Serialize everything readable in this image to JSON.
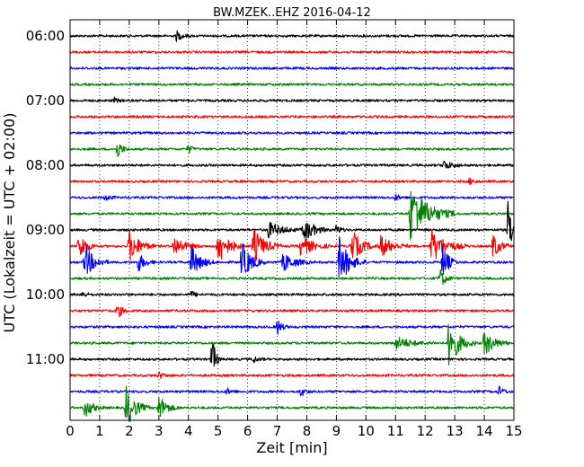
{
  "chart_data": {
    "type": "line",
    "title": "BW.MZEK..EHZ 2016-04-12",
    "xlabel": "Zeit  [min]",
    "ylabel": "UTC (Lokalzeit = UTC + 02:00)",
    "xlim": [
      0,
      15
    ],
    "x_ticks": [
      "0",
      "1",
      "2",
      "3",
      "4",
      "5",
      "6",
      "7",
      "8",
      "9",
      "10",
      "11",
      "12",
      "13",
      "14",
      "15"
    ],
    "y_ticks": [
      "06:00",
      "07:00",
      "08:00",
      "09:00",
      "10:00",
      "11:00"
    ],
    "grid": "dotted",
    "trace_colors": [
      "#000000",
      "#ff0000",
      "#0000ff",
      "#008000"
    ],
    "traces": [
      {
        "start": "06:00",
        "color": "#000000",
        "events": [
          {
            "t": 3.6,
            "amp": 0.3,
            "dur": 0.5
          }
        ]
      },
      {
        "start": "06:15",
        "color": "#ff0000",
        "events": []
      },
      {
        "start": "06:30",
        "color": "#0000ff",
        "events": []
      },
      {
        "start": "06:45",
        "color": "#008000",
        "events": []
      },
      {
        "start": "07:00",
        "color": "#000000",
        "events": [
          {
            "t": 1.5,
            "amp": 0.15,
            "dur": 0.4
          }
        ]
      },
      {
        "start": "07:15",
        "color": "#ff0000",
        "events": []
      },
      {
        "start": "07:30",
        "color": "#0000ff",
        "events": []
      },
      {
        "start": "07:45",
        "color": "#008000",
        "events": [
          {
            "t": 1.6,
            "amp": 0.6,
            "dur": 0.4
          },
          {
            "t": 4.0,
            "amp": 0.3,
            "dur": 0.3
          }
        ]
      },
      {
        "start": "08:00",
        "color": "#000000",
        "events": [
          {
            "t": 12.6,
            "amp": 0.3,
            "dur": 0.8
          }
        ]
      },
      {
        "start": "08:15",
        "color": "#ff0000",
        "events": [
          {
            "t": 13.5,
            "amp": 0.2,
            "dur": 0.4
          }
        ]
      },
      {
        "start": "08:30",
        "color": "#0000ff",
        "events": [
          {
            "t": 1.2,
            "amp": 0.2,
            "dur": 0.4
          },
          {
            "t": 11.0,
            "amp": 0.2,
            "dur": 0.4
          }
        ]
      },
      {
        "start": "08:45",
        "color": "#008000",
        "events": [
          {
            "t": 11.5,
            "amp": 1.8,
            "dur": 1.6
          }
        ]
      },
      {
        "start": "09:00",
        "color": "#000000",
        "events": [
          {
            "t": 6.7,
            "amp": 0.5,
            "dur": 1.2
          },
          {
            "t": 7.9,
            "amp": 0.8,
            "dur": 0.9
          },
          {
            "t": 9.0,
            "amp": 0.3,
            "dur": 0.4
          },
          {
            "t": 14.8,
            "amp": 1.8,
            "dur": 0.5
          }
        ]
      },
      {
        "start": "09:15",
        "color": "#ff0000",
        "events": [
          {
            "t": 0.3,
            "amp": 1.0,
            "dur": 0.6
          },
          {
            "t": 2.0,
            "amp": 1.0,
            "dur": 0.9
          },
          {
            "t": 3.5,
            "amp": 0.6,
            "dur": 1.0
          },
          {
            "t": 5.0,
            "amp": 1.2,
            "dur": 0.9
          },
          {
            "t": 6.2,
            "amp": 1.1,
            "dur": 1.0
          },
          {
            "t": 7.8,
            "amp": 0.7,
            "dur": 1.0
          },
          {
            "t": 9.5,
            "amp": 1.1,
            "dur": 0.9
          },
          {
            "t": 10.5,
            "amp": 0.7,
            "dur": 1.0
          },
          {
            "t": 12.2,
            "amp": 1.1,
            "dur": 1.2
          },
          {
            "t": 14.3,
            "amp": 0.8,
            "dur": 0.6
          }
        ]
      },
      {
        "start": "09:30",
        "color": "#0000ff",
        "events": [
          {
            "t": 0.5,
            "amp": 1.1,
            "dur": 0.8
          },
          {
            "t": 2.3,
            "amp": 0.6,
            "dur": 0.6
          },
          {
            "t": 4.1,
            "amp": 1.0,
            "dur": 0.8
          },
          {
            "t": 5.8,
            "amp": 1.3,
            "dur": 0.8
          },
          {
            "t": 7.2,
            "amp": 0.6,
            "dur": 1.0
          },
          {
            "t": 9.1,
            "amp": 1.5,
            "dur": 0.9
          },
          {
            "t": 12.6,
            "amp": 1.2,
            "dur": 0.5
          }
        ]
      },
      {
        "start": "09:45",
        "color": "#008000",
        "events": [
          {
            "t": 12.5,
            "amp": 0.6,
            "dur": 0.5
          }
        ]
      },
      {
        "start": "10:00",
        "color": "#000000",
        "events": [
          {
            "t": 0.4,
            "amp": 0.2,
            "dur": 0.4
          },
          {
            "t": 4.1,
            "amp": 0.2,
            "dur": 0.4
          }
        ]
      },
      {
        "start": "10:15",
        "color": "#ff0000",
        "events": [
          {
            "t": 1.6,
            "amp": 0.5,
            "dur": 0.4
          }
        ]
      },
      {
        "start": "10:30",
        "color": "#0000ff",
        "events": [
          {
            "t": 7.0,
            "amp": 0.5,
            "dur": 0.4
          }
        ]
      },
      {
        "start": "10:45",
        "color": "#008000",
        "events": [
          {
            "t": 11.0,
            "amp": 0.4,
            "dur": 1.4
          },
          {
            "t": 12.8,
            "amp": 1.5,
            "dur": 0.9
          },
          {
            "t": 14.0,
            "amp": 0.8,
            "dur": 0.9
          }
        ]
      },
      {
        "start": "11:00",
        "color": "#000000",
        "events": [
          {
            "t": 4.8,
            "amp": 1.5,
            "dur": 0.3
          },
          {
            "t": 6.2,
            "amp": 0.2,
            "dur": 0.4
          }
        ]
      },
      {
        "start": "11:15",
        "color": "#ff0000",
        "events": [
          {
            "t": 3.0,
            "amp": 0.2,
            "dur": 0.5
          }
        ]
      },
      {
        "start": "11:30",
        "color": "#0000ff",
        "events": [
          {
            "t": 5.3,
            "amp": 0.2,
            "dur": 0.4
          },
          {
            "t": 7.8,
            "amp": 0.3,
            "dur": 0.4
          },
          {
            "t": 14.5,
            "amp": 0.3,
            "dur": 0.4
          }
        ]
      },
      {
        "start": "11:45",
        "color": "#008000",
        "events": [
          {
            "t": 0.5,
            "amp": 0.6,
            "dur": 0.7
          },
          {
            "t": 1.9,
            "amp": 1.3,
            "dur": 0.8
          },
          {
            "t": 3.0,
            "amp": 0.8,
            "dur": 0.7
          }
        ]
      }
    ]
  }
}
